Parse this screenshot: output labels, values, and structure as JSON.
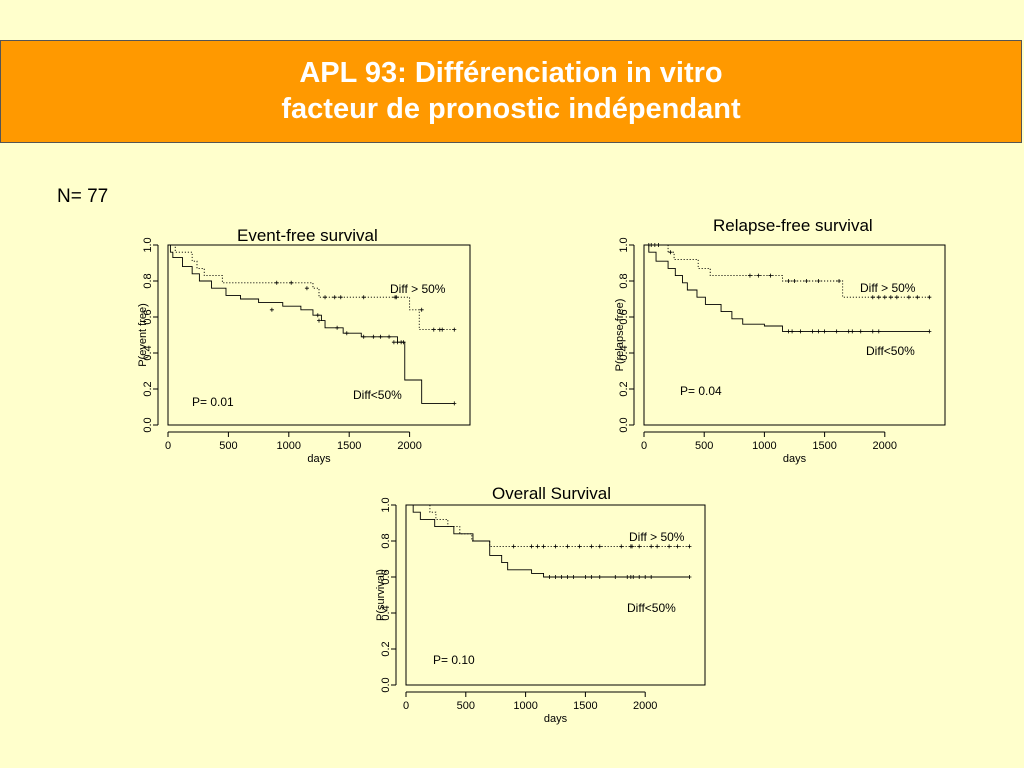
{
  "slide": {
    "title_line1": "APL 93: Différenciation in vitro",
    "title_line2": "facteur de pronostic indépendant",
    "n_label": "N= 77",
    "colors": {
      "title_bg": "#ff9900",
      "title_text": "#ffffff",
      "background": "#ffffcc"
    }
  },
  "chart_data": [
    {
      "type": "line",
      "title": "Event-free survival",
      "xlabel": "days",
      "ylabel": "P(event free)",
      "xlim": [
        0,
        2500
      ],
      "ylim": [
        0,
        1
      ],
      "xticks": [
        "0",
        "500",
        "1000",
        "1500",
        "2000"
      ],
      "yticks": [
        "0.0",
        "0.2",
        "0.4",
        "0.6",
        "0.8",
        "1.0"
      ],
      "p_value": "P= 0.01",
      "series": [
        {
          "name": "Diff > 50%",
          "style": "dotted",
          "steps": [
            [
              0,
              1.0
            ],
            [
              60,
              0.96
            ],
            [
              200,
              0.91
            ],
            [
              240,
              0.87
            ],
            [
              300,
              0.83
            ],
            [
              450,
              0.79
            ],
            [
              1200,
              0.76
            ],
            [
              1250,
              0.71
            ],
            [
              1950,
              0.71
            ],
            [
              2000,
              0.64
            ],
            [
              2080,
              0.53
            ],
            [
              2370,
              0.53
            ]
          ],
          "censors": [
            [
              900,
              0.79
            ],
            [
              1020,
              0.79
            ],
            [
              1150,
              0.76
            ],
            [
              1300,
              0.71
            ],
            [
              1380,
              0.71
            ],
            [
              1430,
              0.71
            ],
            [
              1620,
              0.71
            ],
            [
              1880,
              0.71
            ],
            [
              1890,
              0.71
            ],
            [
              2100,
              0.64
            ],
            [
              2200,
              0.53
            ],
            [
              2250,
              0.53
            ],
            [
              2270,
              0.53
            ],
            [
              2370,
              0.53
            ]
          ]
        },
        {
          "name": "Diff<50%",
          "style": "solid",
          "steps": [
            [
              0,
              1.0
            ],
            [
              20,
              0.96
            ],
            [
              40,
              0.93
            ],
            [
              120,
              0.88
            ],
            [
              200,
              0.84
            ],
            [
              260,
              0.8
            ],
            [
              360,
              0.76
            ],
            [
              480,
              0.72
            ],
            [
              600,
              0.7
            ],
            [
              750,
              0.68
            ],
            [
              950,
              0.66
            ],
            [
              1100,
              0.64
            ],
            [
              1200,
              0.61
            ],
            [
              1270,
              0.58
            ],
            [
              1300,
              0.54
            ],
            [
              1450,
              0.51
            ],
            [
              1600,
              0.49
            ],
            [
              1900,
              0.46
            ],
            [
              1960,
              0.25
            ],
            [
              2100,
              0.12
            ],
            [
              2370,
              0.12
            ]
          ],
          "censors": [
            [
              860,
              0.64
            ],
            [
              1240,
              0.61
            ],
            [
              1250,
              0.58
            ],
            [
              1400,
              0.54
            ],
            [
              1480,
              0.51
            ],
            [
              1620,
              0.49
            ],
            [
              1700,
              0.49
            ],
            [
              1760,
              0.49
            ],
            [
              1830,
              0.49
            ],
            [
              1870,
              0.46
            ],
            [
              1900,
              0.46
            ],
            [
              1930,
              0.46
            ],
            [
              1950,
              0.46
            ],
            [
              2370,
              0.12
            ]
          ]
        }
      ]
    },
    {
      "type": "line",
      "title": "Relapse-free survival",
      "xlabel": "days",
      "ylabel": "P(relapse free)",
      "xlim": [
        0,
        2500
      ],
      "ylim": [
        0,
        1
      ],
      "xticks": [
        "0",
        "500",
        "1000",
        "1500",
        "2000"
      ],
      "yticks": [
        "0.0",
        "0.2",
        "0.4",
        "0.6",
        "0.8",
        "1.0"
      ],
      "p_value": "P= 0.04",
      "series": [
        {
          "name": "Diff > 50%",
          "style": "dotted",
          "steps": [
            [
              0,
              1.0
            ],
            [
              200,
              0.96
            ],
            [
              250,
              0.92
            ],
            [
              450,
              0.87
            ],
            [
              550,
              0.83
            ],
            [
              1150,
              0.8
            ],
            [
              1650,
              0.71
            ],
            [
              2370,
              0.71
            ]
          ],
          "censors": [
            [
              90,
              1.0
            ],
            [
              220,
              0.96
            ],
            [
              880,
              0.83
            ],
            [
              950,
              0.83
            ],
            [
              1050,
              0.83
            ],
            [
              1200,
              0.8
            ],
            [
              1250,
              0.8
            ],
            [
              1350,
              0.8
            ],
            [
              1450,
              0.8
            ],
            [
              1620,
              0.8
            ],
            [
              1900,
              0.71
            ],
            [
              1950,
              0.71
            ],
            [
              2000,
              0.71
            ],
            [
              2050,
              0.71
            ],
            [
              2100,
              0.71
            ],
            [
              2200,
              0.71
            ],
            [
              2270,
              0.71
            ],
            [
              2370,
              0.71
            ]
          ]
        },
        {
          "name": "Diff<50%",
          "style": "solid",
          "steps": [
            [
              0,
              1.0
            ],
            [
              40,
              0.96
            ],
            [
              100,
              0.91
            ],
            [
              200,
              0.87
            ],
            [
              260,
              0.83
            ],
            [
              320,
              0.79
            ],
            [
              360,
              0.75
            ],
            [
              440,
              0.71
            ],
            [
              510,
              0.67
            ],
            [
              640,
              0.63
            ],
            [
              730,
              0.59
            ],
            [
              820,
              0.56
            ],
            [
              1000,
              0.55
            ],
            [
              1150,
              0.52
            ],
            [
              2370,
              0.52
            ]
          ],
          "censors": [
            [
              40,
              1.0
            ],
            [
              60,
              1.0
            ],
            [
              120,
              1.0
            ],
            [
              1200,
              0.52
            ],
            [
              1230,
              0.52
            ],
            [
              1300,
              0.52
            ],
            [
              1400,
              0.52
            ],
            [
              1450,
              0.52
            ],
            [
              1500,
              0.52
            ],
            [
              1600,
              0.52
            ],
            [
              1700,
              0.52
            ],
            [
              1730,
              0.52
            ],
            [
              1800,
              0.52
            ],
            [
              1900,
              0.52
            ],
            [
              1950,
              0.52
            ],
            [
              2370,
              0.52
            ]
          ]
        }
      ]
    },
    {
      "type": "line",
      "title": "Overall Survival",
      "xlabel": "days",
      "ylabel": "P(survival)",
      "xlim": [
        0,
        2500
      ],
      "ylim": [
        0,
        1
      ],
      "xticks": [
        "0",
        "500",
        "1000",
        "1500",
        "2000"
      ],
      "yticks": [
        "0.0",
        "0.2",
        "0.4",
        "0.6",
        "0.8",
        "1.0"
      ],
      "p_value": "P= 0.10",
      "series": [
        {
          "name": "Diff > 50%",
          "style": "dotted",
          "steps": [
            [
              0,
              1.0
            ],
            [
              200,
              0.96
            ],
            [
              250,
              0.92
            ],
            [
              350,
              0.88
            ],
            [
              450,
              0.84
            ],
            [
              550,
              0.8
            ],
            [
              700,
              0.77
            ],
            [
              2370,
              0.77
            ]
          ],
          "censors": [
            [
              900,
              0.77
            ],
            [
              1050,
              0.77
            ],
            [
              1100,
              0.77
            ],
            [
              1150,
              0.77
            ],
            [
              1250,
              0.77
            ],
            [
              1350,
              0.77
            ],
            [
              1450,
              0.77
            ],
            [
              1550,
              0.77
            ],
            [
              1620,
              0.77
            ],
            [
              1800,
              0.77
            ],
            [
              1880,
              0.77
            ],
            [
              1890,
              0.77
            ],
            [
              1950,
              0.77
            ],
            [
              2050,
              0.77
            ],
            [
              2100,
              0.77
            ],
            [
              2200,
              0.77
            ],
            [
              2270,
              0.77
            ],
            [
              2370,
              0.77
            ]
          ]
        },
        {
          "name": "Diff<50%",
          "style": "solid",
          "steps": [
            [
              0,
              1.0
            ],
            [
              60,
              0.96
            ],
            [
              120,
              0.92
            ],
            [
              240,
              0.88
            ],
            [
              400,
              0.84
            ],
            [
              560,
              0.8
            ],
            [
              700,
              0.72
            ],
            [
              800,
              0.68
            ],
            [
              850,
              0.64
            ],
            [
              1050,
              0.62
            ],
            [
              1150,
              0.6
            ],
            [
              2370,
              0.6
            ]
          ],
          "censors": [
            [
              1200,
              0.6
            ],
            [
              1250,
              0.6
            ],
            [
              1300,
              0.6
            ],
            [
              1350,
              0.6
            ],
            [
              1400,
              0.6
            ],
            [
              1500,
              0.6
            ],
            [
              1550,
              0.6
            ],
            [
              1620,
              0.6
            ],
            [
              1750,
              0.6
            ],
            [
              1850,
              0.6
            ],
            [
              1880,
              0.6
            ],
            [
              1900,
              0.6
            ],
            [
              1950,
              0.6
            ],
            [
              2000,
              0.6
            ],
            [
              2050,
              0.6
            ],
            [
              2370,
              0.6
            ]
          ]
        }
      ]
    }
  ]
}
